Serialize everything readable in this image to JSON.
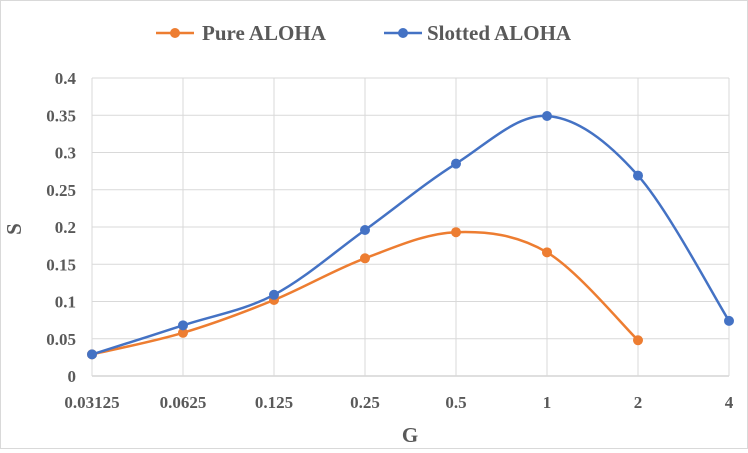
{
  "chart_data": {
    "type": "line",
    "title": "",
    "xlabel": "G",
    "ylabel": "S",
    "categories": [
      "0.03125",
      "0.0625",
      "0.125",
      "0.25",
      "0.5",
      "1",
      "2",
      "4"
    ],
    "ylim": [
      0,
      0.4
    ],
    "yticks": [
      "0",
      "0.05",
      "0.1",
      "0.15",
      "0.2",
      "0.25",
      "0.3",
      "0.35",
      "0.4"
    ],
    "grid": true,
    "legend_position": "top",
    "smooth": true,
    "series": [
      {
        "name": "Pure ALOHA",
        "color": "#ED7D31",
        "values": [
          0.029,
          0.058,
          0.102,
          0.158,
          0.193,
          0.166,
          0.048,
          null
        ]
      },
      {
        "name": "Slotted ALOHA",
        "color": "#4472C4",
        "values": [
          0.029,
          0.068,
          0.109,
          0.196,
          0.285,
          0.349,
          0.269,
          0.074
        ]
      }
    ]
  }
}
